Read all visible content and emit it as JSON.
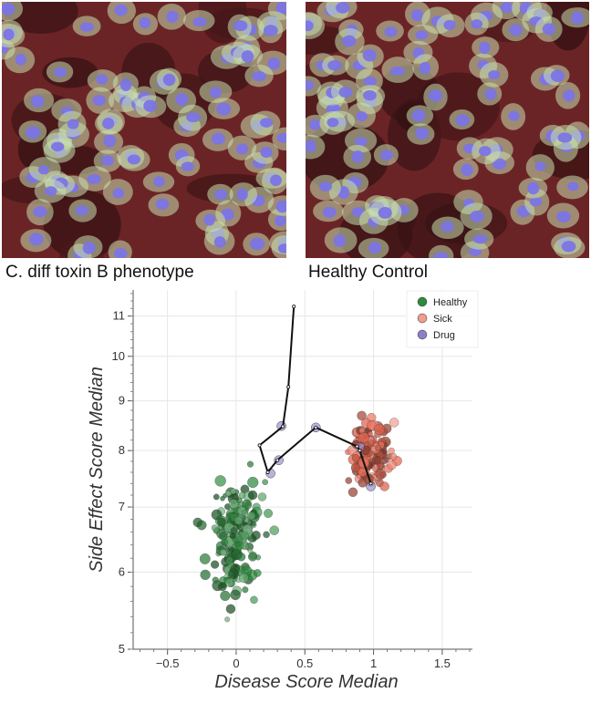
{
  "panels": {
    "left_caption": "C. diff toxin B phenotype",
    "right_caption": "Healthy Control"
  },
  "colors": {
    "healthy": "#2e8b3e",
    "sick": "#e8664f",
    "drug": "#8b80c8",
    "tissue": "#6b2426",
    "nucleus": "#7b74e6",
    "cytoplasm": "#c8e0b0"
  },
  "chart_data": {
    "type": "scatter",
    "xlabel": "Disease Score Median",
    "ylabel": "Side Effect Score Median",
    "xlim": [
      -0.75,
      1.72
    ],
    "ylim": [
      5,
      11.7
    ],
    "y_scale": "log",
    "xticks": [
      -0.5,
      0,
      0.5,
      1,
      1.5
    ],
    "xtick_labels": [
      "−0.5",
      "0",
      "0.5",
      "1",
      "1.5"
    ],
    "yticks": [
      5,
      6,
      7,
      8,
      9,
      10,
      11
    ],
    "ytick_labels": [
      "5",
      "6",
      "7",
      "8",
      "9",
      "10",
      "11"
    ],
    "grid": true,
    "legend": {
      "position": "top-right",
      "entries": [
        "Healthy",
        "Sick",
        "Drug"
      ]
    },
    "series": [
      {
        "name": "Healthy",
        "cluster": {
          "x_center": 0.0,
          "y_center": 6.5,
          "x_spread": 0.09,
          "y_spread": 0.4,
          "count": 190
        },
        "outliers": [
          {
            "x": -0.28,
            "y": 6.75
          },
          {
            "x": -0.04,
            "y": 5.5
          },
          {
            "x": 0.12,
            "y": 7.2
          }
        ]
      },
      {
        "name": "Sick",
        "cluster": {
          "x_center": 0.98,
          "y_center": 7.95,
          "x_spread": 0.07,
          "y_spread": 0.28,
          "count": 150
        },
        "outliers": [
          {
            "x": 0.85,
            "y": 7.25
          },
          {
            "x": 1.08,
            "y": 7.35
          },
          {
            "x": 1.15,
            "y": 8.55
          }
        ]
      },
      {
        "name": "Drug",
        "points": [
          {
            "x": 0.58,
            "y": 8.45
          },
          {
            "x": 0.33,
            "y": 8.48
          },
          {
            "x": 0.31,
            "y": 7.82
          },
          {
            "x": 0.25,
            "y": 7.58
          },
          {
            "x": 0.9,
            "y": 8.07
          },
          {
            "x": 0.98,
            "y": 7.35
          }
        ]
      }
    ],
    "trajectory": [
      {
        "x": 0.42,
        "y": 11.25
      },
      {
        "x": 0.38,
        "y": 9.3
      },
      {
        "x": 0.34,
        "y": 8.47
      },
      {
        "x": 0.17,
        "y": 8.1
      },
      {
        "x": 0.23,
        "y": 7.6
      },
      {
        "x": 0.3,
        "y": 7.82
      },
      {
        "x": 0.58,
        "y": 8.45
      },
      {
        "x": 0.88,
        "y": 8.08
      },
      {
        "x": 0.9,
        "y": 8.0
      },
      {
        "x": 0.98,
        "y": 7.4
      }
    ]
  }
}
